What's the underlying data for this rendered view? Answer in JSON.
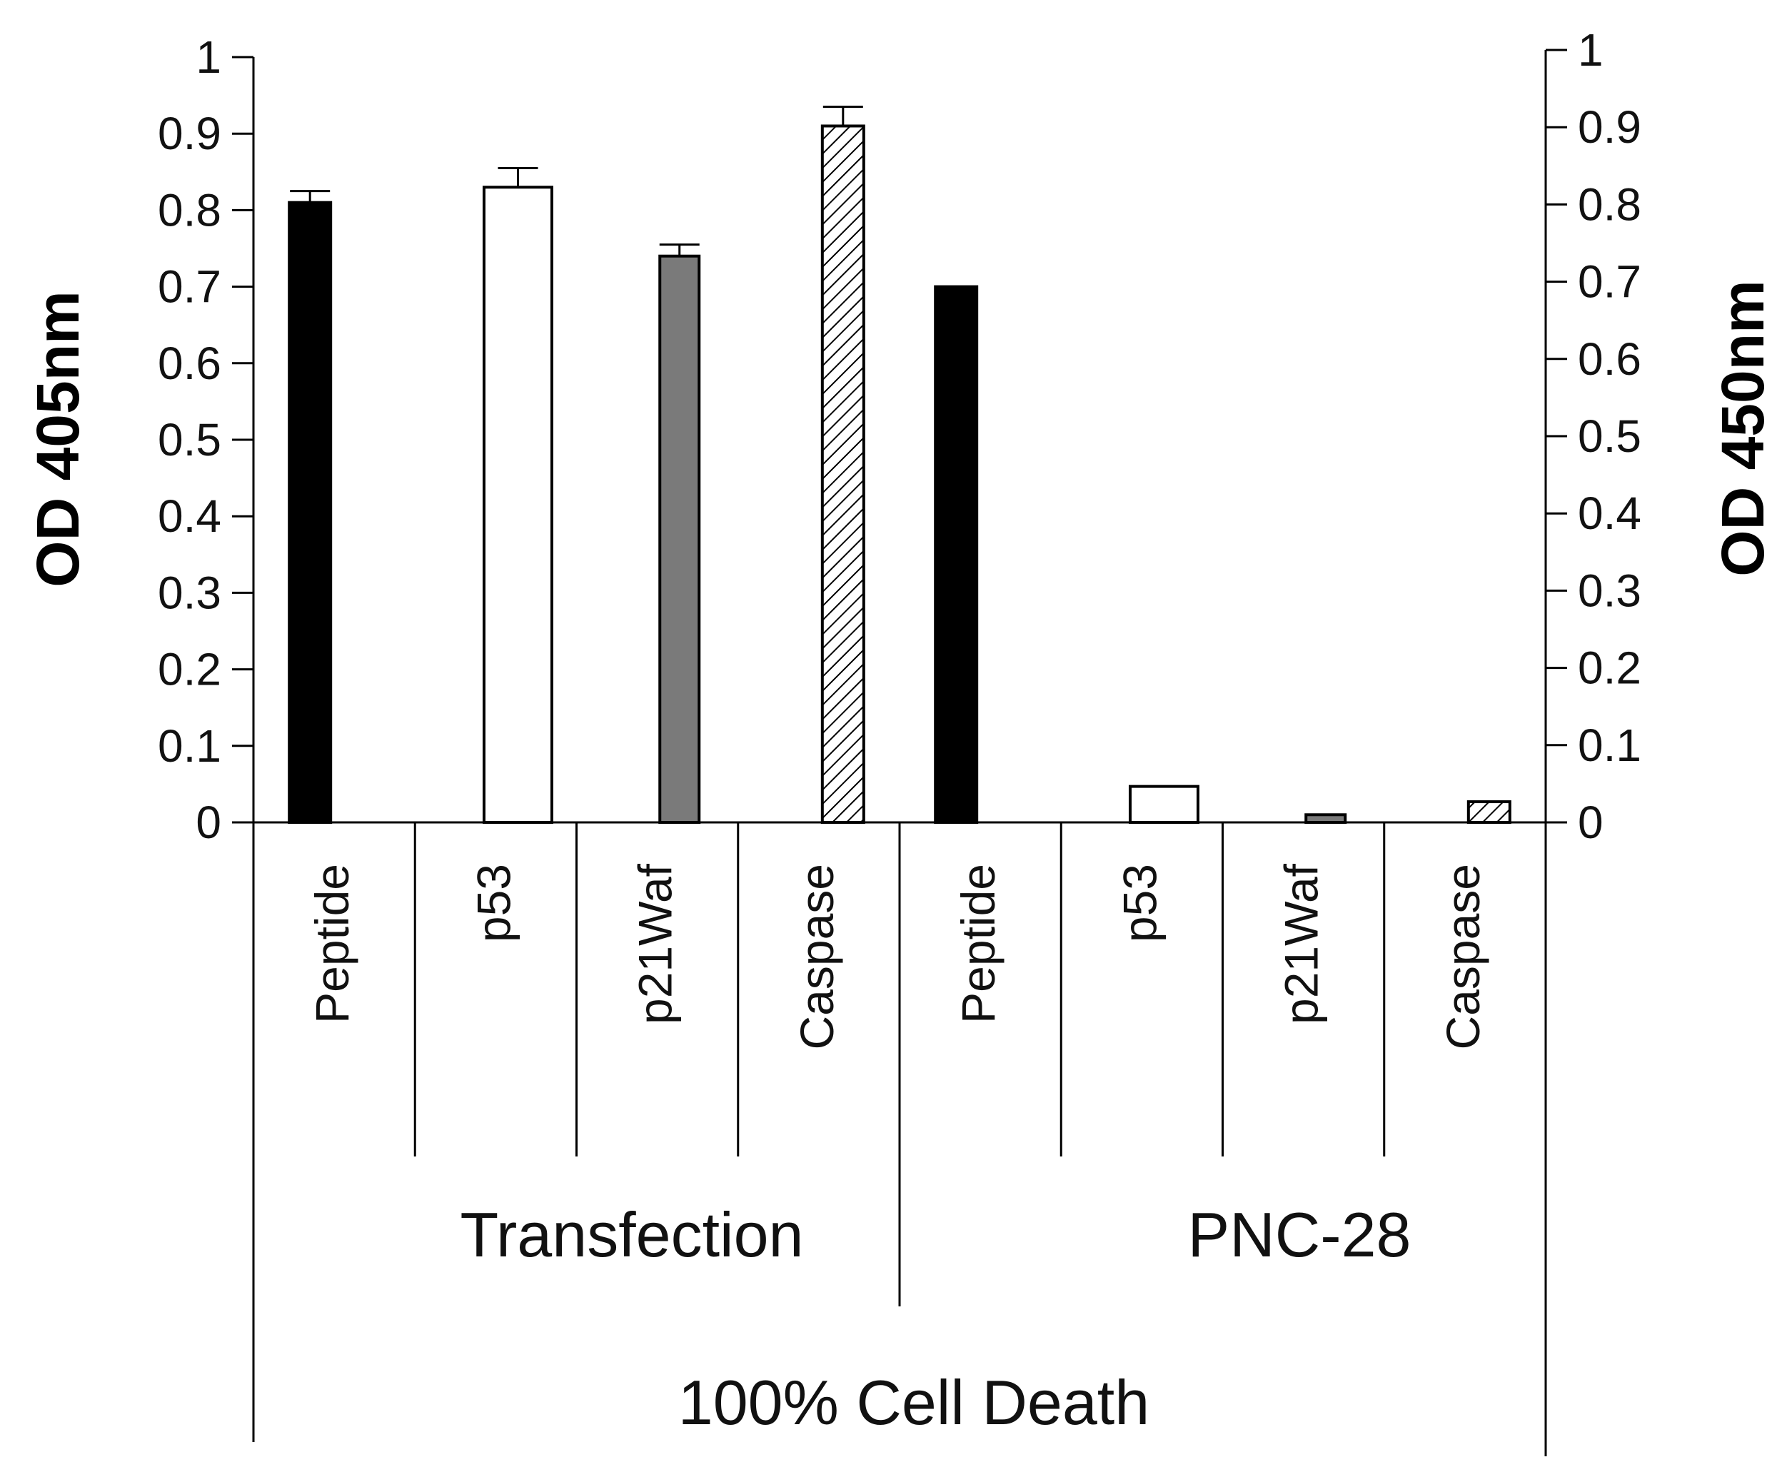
{
  "chart_data": {
    "type": "bar",
    "title": "",
    "ylabel_left": "OD 405nm",
    "ylabel_right": "OD 450nm",
    "ylim": [
      0,
      1
    ],
    "yticks": [
      "0",
      "0.1",
      "0.2",
      "0.3",
      "0.4",
      "0.5",
      "0.6",
      "0.7",
      "0.8",
      "0.9",
      "1"
    ],
    "categories": [
      "Peptide",
      "p53",
      "p21Waf",
      "Caspase",
      "Peptide",
      "p53",
      "p21Waf",
      "Caspase"
    ],
    "groups": [
      "Transfection",
      "PNC-28"
    ],
    "outer_label": "100% Cell Death",
    "bars": [
      {
        "group": "Transfection",
        "label": "Peptide",
        "value": 0.81,
        "error": 0.015,
        "fill": "solid-black"
      },
      {
        "group": "Transfection",
        "label": "p53",
        "value": 0.83,
        "error": 0.025,
        "fill": "white"
      },
      {
        "group": "Transfection",
        "label": "p21Waf",
        "value": 0.74,
        "error": 0.015,
        "fill": "gray"
      },
      {
        "group": "Transfection",
        "label": "Caspase",
        "value": 0.91,
        "error": 0.025,
        "fill": "hatched"
      },
      {
        "group": "PNC-28",
        "label": "Peptide",
        "value": 0.7,
        "error": 0,
        "fill": "solid-black"
      },
      {
        "group": "PNC-28",
        "label": "p53",
        "value": 0.047,
        "error": 0,
        "fill": "white"
      },
      {
        "group": "PNC-28",
        "label": "p21Waf",
        "value": 0.01,
        "error": 0,
        "fill": "gray"
      },
      {
        "group": "PNC-28",
        "label": "Caspase",
        "value": 0.027,
        "error": 0,
        "fill": "hatched"
      }
    ],
    "colors": {
      "solid-black": "#000000",
      "white": "#ffffff",
      "gray": "#7a7a7a",
      "hatched": "#ffffff"
    }
  }
}
